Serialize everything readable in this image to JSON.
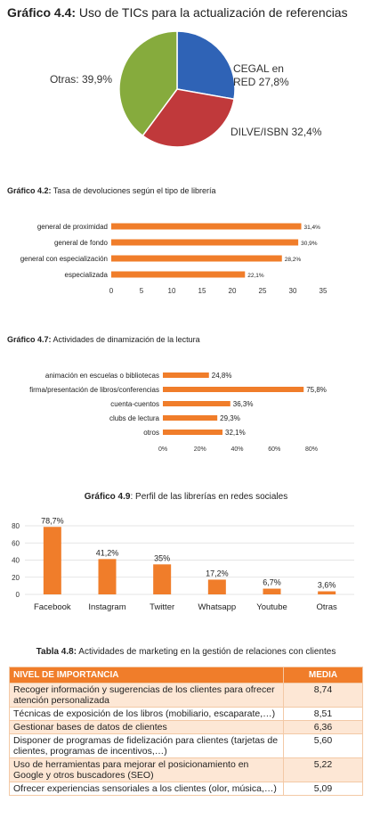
{
  "charts": [
    {
      "title_bold": "Gráfico 4.4:",
      "title_rest": " Uso de TICs para la actualización de referencias",
      "chart_data": {
        "type": "pie",
        "categories": [
          "CEGAL en RED 27,8%",
          "DILVE/ISBN 32,4%",
          "Otras: 39,9%"
        ],
        "values": [
          27.8,
          32.4,
          39.9
        ],
        "colors": [
          "#2f63b6",
          "#c0393b",
          "#86ab3d"
        ],
        "label_lines": [
          [
            "CEGAL en",
            "RED 27,8%"
          ],
          [
            "DILVE/ISBN 32,4%"
          ],
          [
            "Otras: 39,9%"
          ]
        ]
      }
    },
    {
      "title_bold": "Gráfico 4.2:",
      "title_rest": " Tasa de devoluciones según el tipo de librería",
      "chart_data": {
        "type": "bar",
        "orientation": "horizontal",
        "categories": [
          "general de proximidad",
          "general de fondo",
          "general con especialización",
          "especializada"
        ],
        "values": [
          31.4,
          30.9,
          28.2,
          22.1
        ],
        "value_labels": [
          "31,4%",
          "30,9%",
          "28,2%",
          "22,1%"
        ],
        "xlim": [
          0,
          35
        ],
        "xticks": [
          "0",
          "5",
          "10",
          "15",
          "20",
          "25",
          "30",
          "35"
        ],
        "color": "#f07d2a"
      }
    },
    {
      "title_bold": "Gráfico 4.7:",
      "title_rest": " Actividades de dinamización de la lectura",
      "chart_data": {
        "type": "bar",
        "orientation": "horizontal",
        "categories": [
          "animación en escuelas o bibliotecas",
          "firma/presentación de libros/conferencias",
          "cuenta-cuentos",
          "clubs de lectura",
          "otros"
        ],
        "values": [
          24.8,
          75.8,
          36.3,
          29.3,
          32.1
        ],
        "value_labels": [
          "24,8%",
          "75,8%",
          "36,3%",
          "29,3%",
          "32,1%"
        ],
        "xlim": [
          0,
          80
        ],
        "xticks": [
          "0%",
          "20%",
          "40%",
          "60%",
          "80%"
        ],
        "color": "#f07d2a"
      }
    },
    {
      "title_bold": "Gráfico 4.9",
      "title_rest": ": Perfil de las librerías en redes sociales",
      "chart_data": {
        "type": "bar",
        "orientation": "vertical",
        "categories": [
          "Facebook",
          "Instagram",
          "Twitter",
          "Whatsapp",
          "Youtube",
          "Otras"
        ],
        "values": [
          78.7,
          41.2,
          35,
          17.2,
          6.7,
          3.6
        ],
        "value_labels": [
          "78,7%",
          "41,2%",
          "35%",
          "17,2%",
          "6,7%",
          "3,6%"
        ],
        "ylim": [
          0,
          80
        ],
        "yticks": [
          "0",
          "20",
          "40",
          "60",
          "80"
        ],
        "color": "#f07d2a"
      }
    }
  ],
  "table": {
    "title_bold": "Tabla 4.8:",
    "title_rest": " Actividades de marketing en la gestión de relaciones con clientes",
    "header": [
      "NIVEL DE IMPORTANCIA",
      "MEDIA"
    ],
    "rows": [
      [
        "Recoger información y sugerencias de los clientes para ofrecer atención personalizada",
        "8,74"
      ],
      [
        "Técnicas de exposición de los libros (mobiliario, escaparate,…)",
        "8,51"
      ],
      [
        "Gestionar bases de datos de clientes",
        "6,36"
      ],
      [
        "Disponer de programas de fidelización para clientes (tarjetas de clientes, programas de incentivos,…)",
        "5,60"
      ],
      [
        "Uso de herramientas para mejorar el posicionamiento en Google y otros buscadores (SEO)",
        "5,22"
      ],
      [
        "Ofrecer experiencias sensoriales a los clientes (olor, música,…)",
        "5,09"
      ]
    ]
  }
}
